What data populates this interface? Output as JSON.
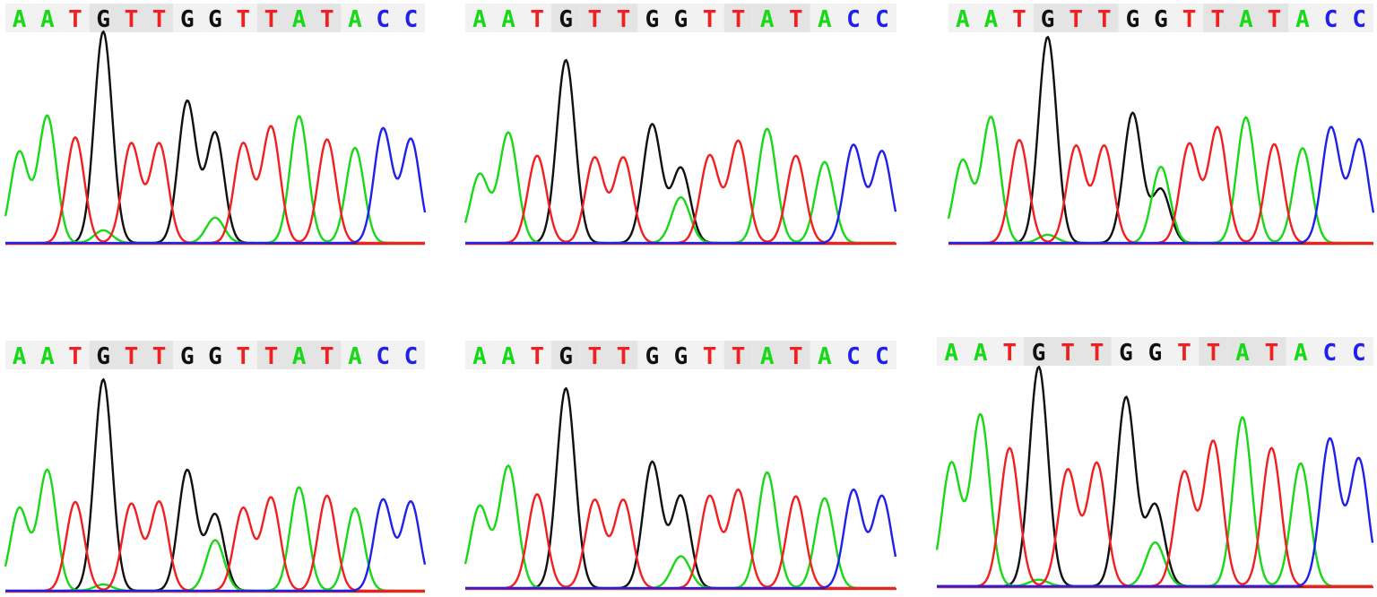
{
  "colors": {
    "A": "#18d818",
    "T": "#f02020",
    "G": "#101010",
    "C": "#2020e8",
    "band_dark": "#e4e4e4",
    "band_light": "#f2f2f2",
    "baseline": "#e83030"
  },
  "chart_data": [
    {
      "type": "line",
      "sequence": [
        "A",
        "A",
        "T",
        "G",
        "T",
        "T",
        "G",
        "G",
        "T",
        "T",
        "A",
        "T",
        "A",
        "C",
        "C"
      ],
      "peak_heights": [
        0.43,
        0.6,
        0.5,
        1.0,
        0.47,
        0.47,
        0.67,
        0.52,
        0.47,
        0.55,
        0.6,
        0.49,
        0.45,
        0.54,
        0.49
      ],
      "secondary_peaks": [
        {
          "position": 3,
          "base": "A",
          "height": 0.06
        },
        {
          "position": 7,
          "base": "A",
          "height": 0.12
        }
      ]
    },
    {
      "type": "line",
      "sequence": [
        "A",
        "A",
        "T",
        "G",
        "T",
        "T",
        "G",
        "G",
        "T",
        "T",
        "A",
        "T",
        "A",
        "C",
        "C"
      ],
      "peak_heights": [
        0.33,
        0.53,
        0.42,
        0.88,
        0.41,
        0.41,
        0.57,
        0.36,
        0.42,
        0.49,
        0.55,
        0.42,
        0.39,
        0.47,
        0.44
      ],
      "secondary_peaks": [
        {
          "position": 7,
          "base": "A",
          "height": 0.22
        }
      ]
    },
    {
      "type": "line",
      "sequence": [
        "A",
        "A",
        "T",
        "G",
        "T",
        "T",
        "G",
        "G",
        "T",
        "T",
        "A",
        "T",
        "A",
        "C",
        "C"
      ],
      "peak_heights": [
        0.4,
        0.61,
        0.5,
        1.0,
        0.47,
        0.47,
        0.63,
        0.26,
        0.48,
        0.56,
        0.61,
        0.48,
        0.46,
        0.56,
        0.5
      ],
      "secondary_peaks": [
        {
          "position": 7,
          "base": "A",
          "height": 0.37
        },
        {
          "position": 3,
          "base": "A",
          "height": 0.04
        }
      ]
    },
    {
      "type": "line",
      "sequence": [
        "A",
        "A",
        "T",
        "G",
        "T",
        "T",
        "G",
        "G",
        "T",
        "T",
        "A",
        "T",
        "A",
        "C",
        "C"
      ],
      "peak_heights": [
        0.39,
        0.57,
        0.42,
        1.0,
        0.41,
        0.42,
        0.57,
        0.36,
        0.39,
        0.44,
        0.49,
        0.45,
        0.39,
        0.43,
        0.42
      ],
      "secondary_peaks": [
        {
          "position": 7,
          "base": "A",
          "height": 0.24
        },
        {
          "position": 3,
          "base": "A",
          "height": 0.03
        }
      ]
    },
    {
      "type": "line",
      "sequence": [
        "A",
        "A",
        "T",
        "G",
        "T",
        "T",
        "G",
        "G",
        "T",
        "T",
        "A",
        "T",
        "A",
        "C",
        "C"
      ],
      "peak_heights": [
        0.41,
        0.61,
        0.47,
        1.0,
        0.44,
        0.44,
        0.63,
        0.46,
        0.46,
        0.49,
        0.58,
        0.46,
        0.45,
        0.49,
        0.46
      ],
      "secondary_peaks": [
        {
          "position": 7,
          "base": "A",
          "height": 0.16
        }
      ]
    },
    {
      "type": "line",
      "sequence": [
        "A",
        "A",
        "T",
        "G",
        "T",
        "T",
        "G",
        "G",
        "T",
        "T",
        "A",
        "T",
        "A",
        "C",
        "C"
      ],
      "peak_heights": [
        0.56,
        0.78,
        0.63,
        1.0,
        0.53,
        0.56,
        0.86,
        0.37,
        0.52,
        0.66,
        0.77,
        0.63,
        0.56,
        0.67,
        0.58
      ],
      "secondary_peaks": [
        {
          "position": 7,
          "base": "A",
          "height": 0.2
        },
        {
          "position": 3,
          "base": "A",
          "height": 0.03
        }
      ]
    }
  ]
}
